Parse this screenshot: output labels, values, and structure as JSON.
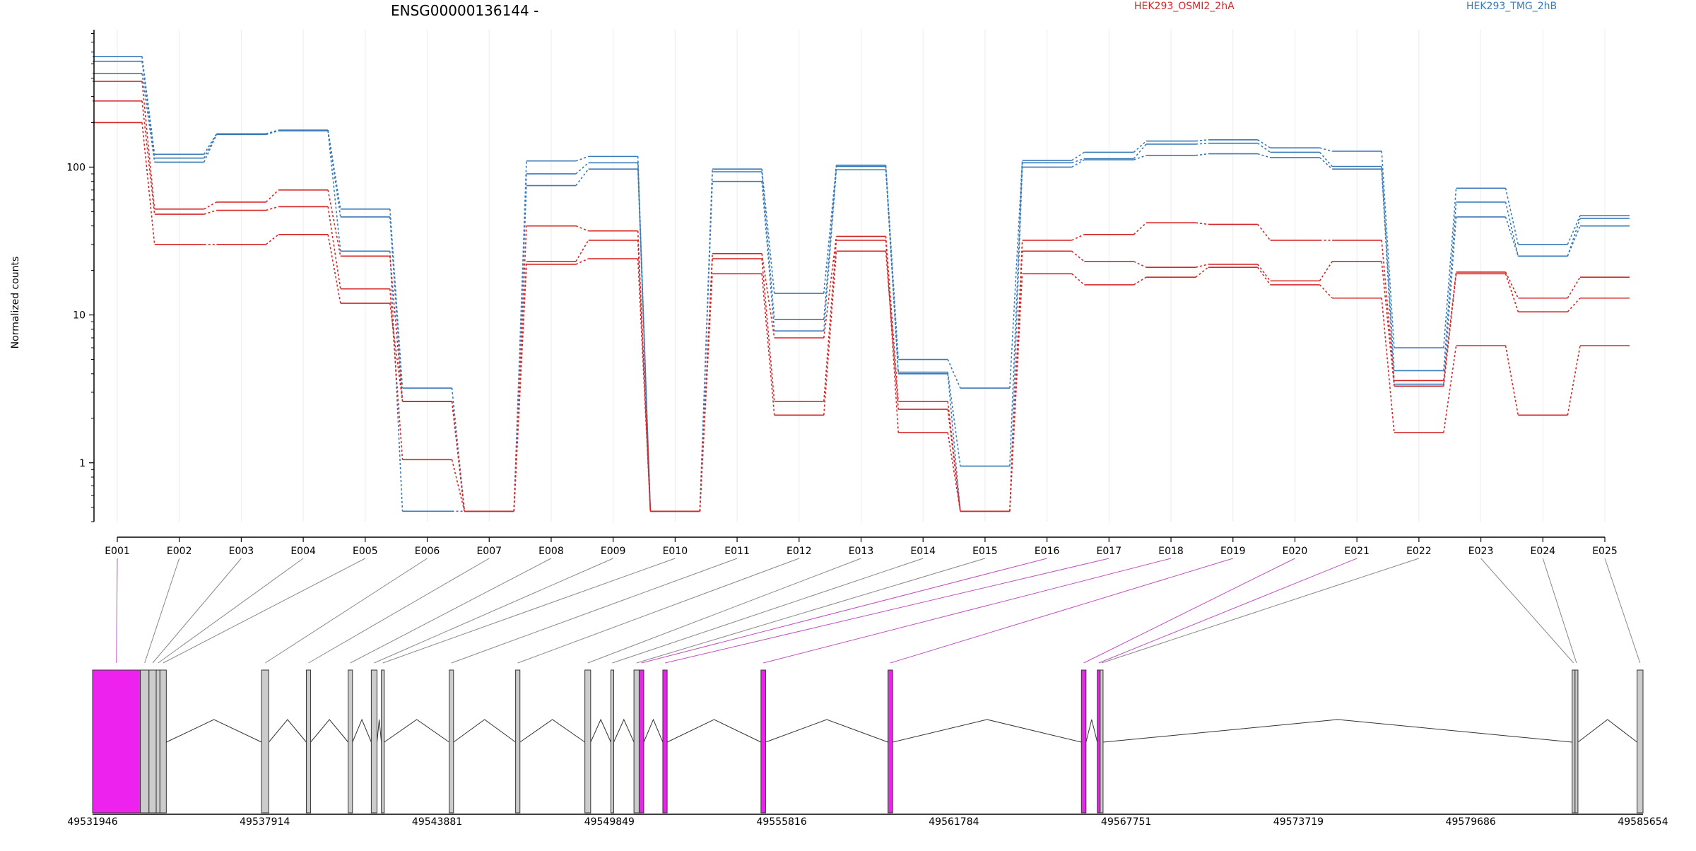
{
  "chart_data": {
    "type": "line",
    "title": "ENSG00000136144 -",
    "ylabel": "Normalized counts",
    "y_scale": "log",
    "ylim": [
      0.4,
      850
    ],
    "y_ticks": [
      1,
      10,
      100
    ],
    "y_tick_labels": [
      "1",
      "10",
      "100"
    ],
    "legend": [
      {
        "name": "HEK293_OSMI2_2hA",
        "color": "#d62728"
      },
      {
        "name": "HEK293_TMG_2hB",
        "color": "#3a7ab8"
      }
    ],
    "categories": [
      "E001",
      "E002",
      "E003",
      "E004",
      "E005",
      "E006",
      "E007",
      "E008",
      "E009",
      "E010",
      "E011",
      "E012",
      "E013",
      "E014",
      "E015",
      "E016",
      "E017",
      "E018",
      "E019",
      "E020",
      "E021",
      "E022",
      "E023",
      "E024",
      "E025"
    ],
    "series": [
      {
        "group": "HEK293_TMG_2hB",
        "values": [
          560,
          122,
          168,
          178,
          52,
          3.2,
          0.47,
          110,
          118,
          0.47,
          97,
          14,
          103,
          5.0,
          3.2,
          111,
          126,
          150,
          153,
          135,
          128,
          6.0,
          72,
          30,
          47
        ]
      },
      {
        "group": "HEK293_TMG_2hB",
        "values": [
          520,
          115,
          167,
          177,
          46,
          2.6,
          0.47,
          90,
          107,
          0.47,
          93,
          9.3,
          101,
          4.1,
          0.95,
          107,
          114,
          143,
          145,
          126,
          101,
          4.2,
          58,
          25,
          45
        ]
      },
      {
        "group": "HEK293_TMG_2hB",
        "values": [
          430,
          108,
          166,
          176,
          27,
          0.47,
          0.47,
          75,
          97,
          0.47,
          80,
          7.8,
          96,
          4.0,
          0.47,
          100,
          112,
          120,
          123,
          116,
          97,
          3.4,
          46,
          25,
          40
        ]
      },
      {
        "group": "HEK293_OSMI2_2hA",
        "values": [
          380,
          52,
          58,
          70,
          25,
          2.6,
          0.47,
          40,
          37,
          0.47,
          26,
          7.0,
          34,
          2.6,
          0.47,
          32,
          35,
          42,
          41,
          32,
          32,
          3.6,
          19.5,
          13,
          18
        ]
      },
      {
        "group": "HEK293_OSMI2_2hA",
        "values": [
          280,
          48,
          51,
          54,
          15,
          1.05,
          0.47,
          23,
          32,
          0.47,
          24,
          2.6,
          32,
          1.6,
          0.47,
          27,
          23,
          21,
          22,
          17,
          23,
          3.3,
          19,
          10.5,
          13
        ]
      },
      {
        "group": "HEK293_OSMI2_2hA",
        "values": [
          200,
          30,
          30,
          35,
          12,
          2.6,
          0.47,
          22,
          24,
          0.47,
          19,
          2.1,
          27,
          2.3,
          0.47,
          19,
          16,
          18,
          21,
          16,
          13,
          1.6,
          6.2,
          2.1,
          6.2
        ]
      }
    ],
    "gene_model": {
      "coord_labels": [
        "49531946",
        "49537914",
        "49543881",
        "49549849",
        "49555816",
        "49561784",
        "49567751",
        "49573719",
        "49579686",
        "49585654"
      ],
      "coord_min": 49531946,
      "coord_max": 49585654,
      "exon_colors": {
        "default": "#cccccc",
        "highlight": "#ee22ee",
        "lines": "#888888",
        "highlight_lines": "#c050c0"
      },
      "exons": [
        {
          "id": "E001",
          "start": 49531946,
          "end": 49533600,
          "highlight": true
        },
        {
          "id": "E002",
          "start": 49533600,
          "end": 49533900,
          "highlight": false
        },
        {
          "id": "E003",
          "start": 49533900,
          "end": 49534150,
          "highlight": false
        },
        {
          "id": "E004",
          "start": 49534150,
          "end": 49534280,
          "highlight": false
        },
        {
          "id": "E005",
          "start": 49534280,
          "end": 49534500,
          "highlight": false
        },
        {
          "id": "E006",
          "start": 49537800,
          "end": 49538050,
          "highlight": false
        },
        {
          "id": "E007",
          "start": 49539350,
          "end": 49539500,
          "highlight": false
        },
        {
          "id": "E008",
          "start": 49540800,
          "end": 49540950,
          "highlight": false
        },
        {
          "id": "E009",
          "start": 49541600,
          "end": 49541800,
          "highlight": false
        },
        {
          "id": "E010",
          "start": 49541950,
          "end": 49542050,
          "highlight": false
        },
        {
          "id": "E011",
          "start": 49544300,
          "end": 49544450,
          "highlight": false
        },
        {
          "id": "E012",
          "start": 49546600,
          "end": 49546750,
          "highlight": false
        },
        {
          "id": "E013",
          "start": 49549000,
          "end": 49549200,
          "highlight": false
        },
        {
          "id": "E014",
          "start": 49549900,
          "end": 49550000,
          "highlight": false
        },
        {
          "id": "E015",
          "start": 49550700,
          "end": 49550880,
          "highlight": false
        },
        {
          "id": "E016",
          "start": 49550880,
          "end": 49551040,
          "highlight": true
        },
        {
          "id": "E017",
          "start": 49551700,
          "end": 49551850,
          "highlight": true
        },
        {
          "id": "E018",
          "start": 49555100,
          "end": 49555260,
          "highlight": true
        },
        {
          "id": "E019",
          "start": 49559500,
          "end": 49559660,
          "highlight": true
        },
        {
          "id": "E020",
          "start": 49566200,
          "end": 49566360,
          "highlight": true
        },
        {
          "id": "E021",
          "start": 49566750,
          "end": 49566850,
          "highlight": true
        },
        {
          "id": "E022",
          "start": 49566850,
          "end": 49566950,
          "highlight": false
        },
        {
          "id": "E023",
          "start": 49583200,
          "end": 49583300,
          "highlight": false
        },
        {
          "id": "E024",
          "start": 49583300,
          "end": 49583400,
          "highlight": false
        },
        {
          "id": "E025",
          "start": 49585450,
          "end": 49585654,
          "highlight": false
        }
      ],
      "introns": [
        [
          49534500,
          49537800
        ],
        [
          49538050,
          49539350
        ],
        [
          49539500,
          49540800
        ],
        [
          49540950,
          49541600
        ],
        [
          49541800,
          49541950
        ],
        [
          49542050,
          49544300
        ],
        [
          49544450,
          49546600
        ],
        [
          49546750,
          49549000
        ],
        [
          49549200,
          49549900
        ],
        [
          49550000,
          49550700
        ],
        [
          49551040,
          49551700
        ],
        [
          49551850,
          49555100
        ],
        [
          49555260,
          49559500
        ],
        [
          49559660,
          49566200
        ],
        [
          49566360,
          49566750
        ],
        [
          49566950,
          49583200
        ],
        [
          49583400,
          49585450
        ]
      ]
    }
  }
}
